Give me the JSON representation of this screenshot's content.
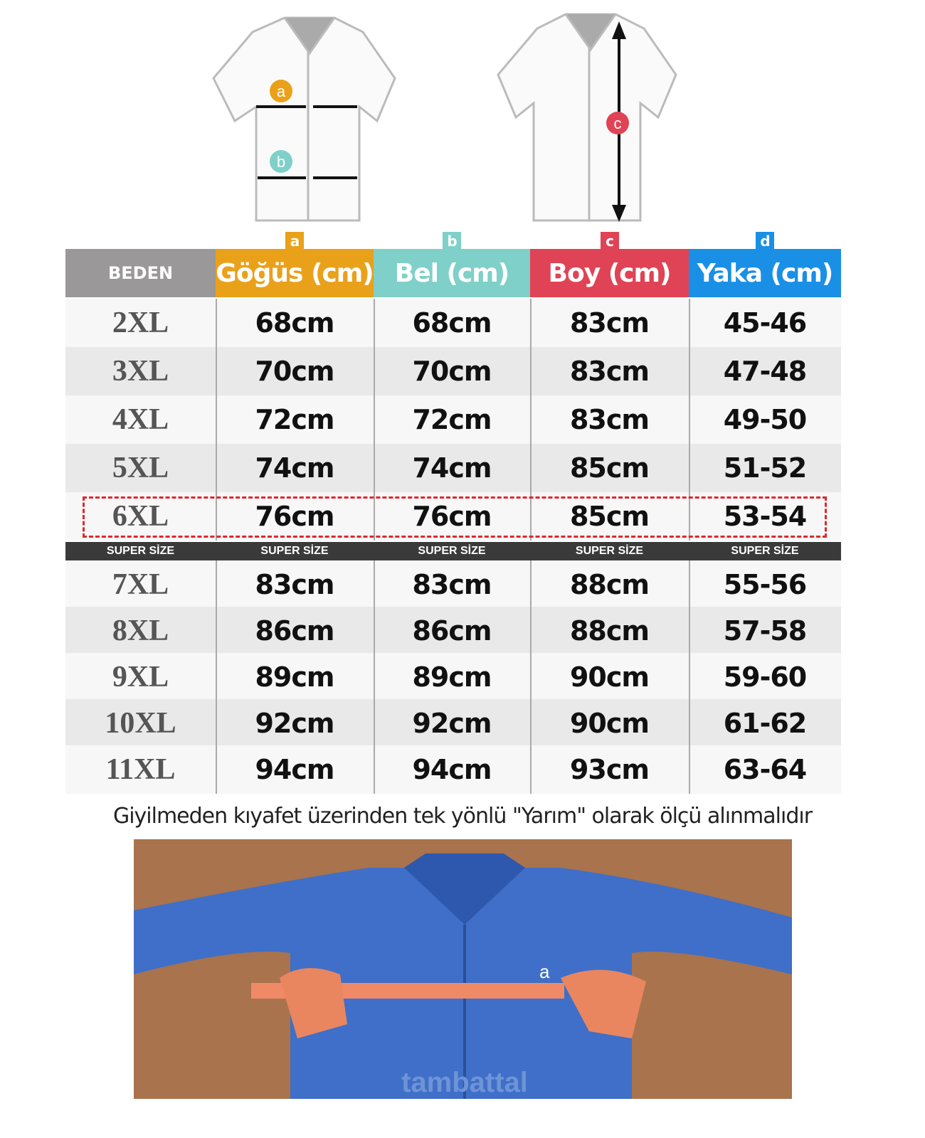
{
  "diagram_labels": {
    "chest": "a",
    "waist": "b",
    "length": "c",
    "collar": "d"
  },
  "header": {
    "size": "BEDEN",
    "chest": "Göğüs (cm)",
    "waist": "Bel (cm)",
    "length": "Boy (cm)",
    "collar": "Yaka (cm)"
  },
  "colors": {
    "size": "#9a9899",
    "chest": "#e9a11a",
    "waist": "#7fd0c8",
    "length": "#e04355",
    "collar": "#1a8fe6",
    "highlight": "#e0262e"
  },
  "rows": [
    {
      "size": "2XL",
      "chest": "68cm",
      "waist": "68cm",
      "length": "83cm",
      "collar": "45-46"
    },
    {
      "size": "3XL",
      "chest": "70cm",
      "waist": "70cm",
      "length": "83cm",
      "collar": "47-48"
    },
    {
      "size": "4XL",
      "chest": "72cm",
      "waist": "72cm",
      "length": "83cm",
      "collar": "49-50"
    },
    {
      "size": "5XL",
      "chest": "74cm",
      "waist": "74cm",
      "length": "85cm",
      "collar": "51-52"
    },
    {
      "size": "6XL",
      "chest": "76cm",
      "waist": "76cm",
      "length": "85cm",
      "collar": "53-54",
      "highlighted": true
    }
  ],
  "super_label": "SUPER SİZE",
  "super_rows": [
    {
      "size": "7XL",
      "chest": "83cm",
      "waist": "83cm",
      "length": "88cm",
      "collar": "55-56"
    },
    {
      "size": "8XL",
      "chest": "86cm",
      "waist": "86cm",
      "length": "88cm",
      "collar": "57-58"
    },
    {
      "size": "9XL",
      "chest": "89cm",
      "waist": "89cm",
      "length": "90cm",
      "collar": "59-60"
    },
    {
      "size": "10XL",
      "chest": "92cm",
      "waist": "92cm",
      "length": "90cm",
      "collar": "61-62"
    },
    {
      "size": "11XL",
      "chest": "94cm",
      "waist": "94cm",
      "length": "93cm",
      "collar": "63-64"
    }
  ],
  "note": "Giyilmeden kıyafet üzerinden tek yönlü \"Yarım\" olarak ölçü alınmalıdır",
  "watermark": "tambattal"
}
